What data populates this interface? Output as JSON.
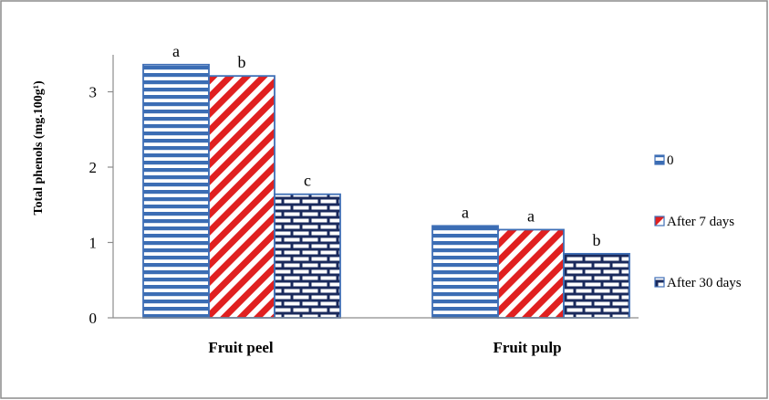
{
  "chart_data": {
    "type": "bar",
    "title": "",
    "xlabel": "",
    "ylabel": "Total phenols (mg.100g¹)",
    "categories": [
      "Fruit peel",
      "Fruit pulp"
    ],
    "ylim": [
      0,
      3.5
    ],
    "yticks": [
      0,
      1,
      2,
      3
    ],
    "grid": false,
    "legend_position": "right",
    "series": [
      {
        "name": "0",
        "values": [
          3.36,
          1.22
        ],
        "labels": [
          "a",
          "a"
        ],
        "pattern": "horizontal-stripes",
        "color": "#3b6db4"
      },
      {
        "name": "After 7 days",
        "values": [
          3.21,
          1.17
        ],
        "labels": [
          "b",
          "a"
        ],
        "pattern": "diagonal-stripes",
        "color": "#e02020"
      },
      {
        "name": "After 30 days",
        "values": [
          1.64,
          0.85
        ],
        "labels": [
          "c",
          "b"
        ],
        "pattern": "brick",
        "color": "#1a2a5c"
      }
    ]
  },
  "colors": {
    "frame": "#8c8c8c",
    "axis": "#8c8c8c",
    "bar_border": "#3f6fb6",
    "blue_stripe": "#3b6db4",
    "red_stripe": "#e02020",
    "navy_brick": "#1a2a5c"
  }
}
